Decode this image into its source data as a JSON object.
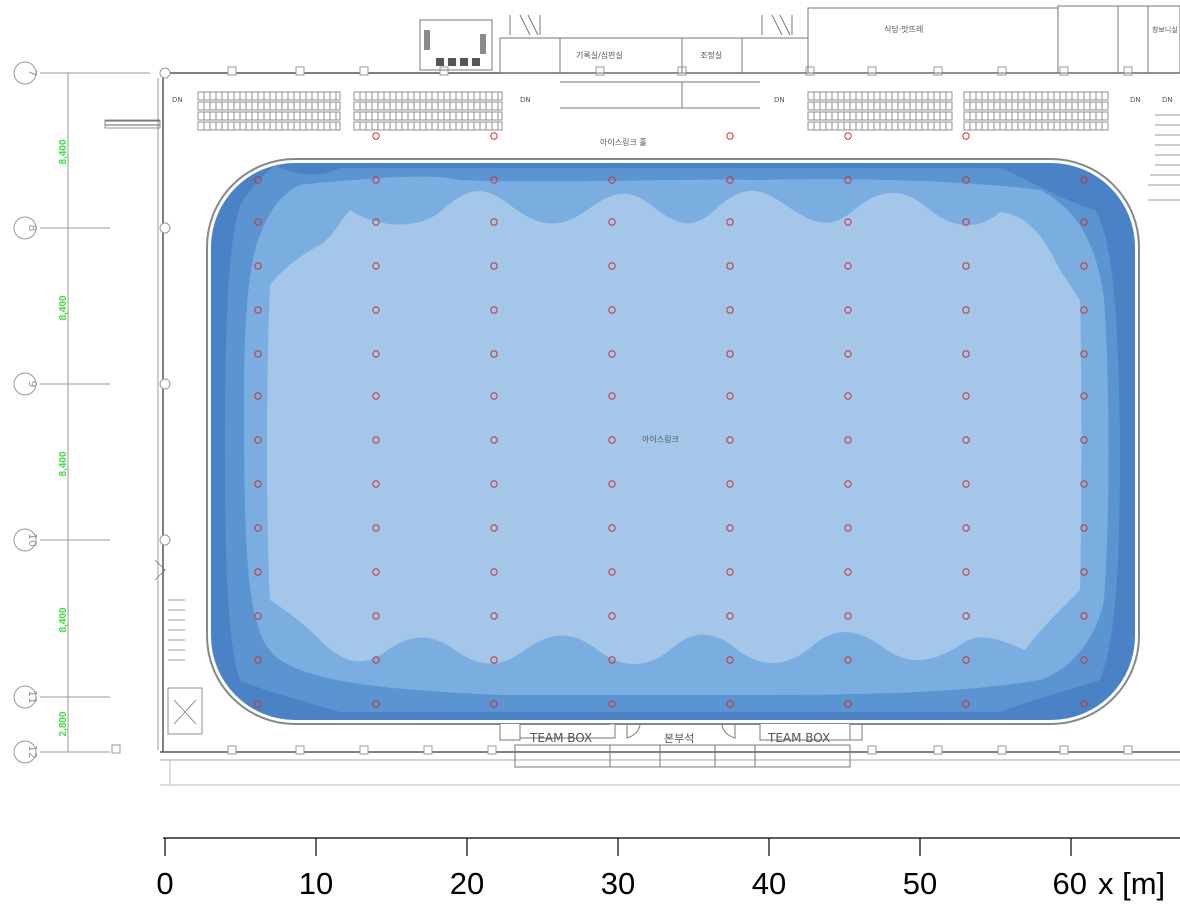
{
  "rooms": {
    "record_room": "기록실/심판실",
    "control_room": "조정실",
    "cafeteria": "식당·맛뜨레",
    "storage": "창보니실",
    "rink_hall": "아이스링크 홀",
    "rink": "아이스링크",
    "team_box_left": "TEAM BOX",
    "team_box_right": "TEAM BOX",
    "officials": "본부석"
  },
  "stairs": {
    "labels": [
      "DN",
      "DN",
      "DN",
      "DN",
      "DN"
    ]
  },
  "grid_lines": {
    "labels": [
      "7",
      "8",
      "9",
      "10",
      "11",
      "12"
    ],
    "spacings": [
      "8,400",
      "8,400",
      "8,400",
      "8,400",
      "2,800"
    ]
  },
  "x_axis": {
    "ticks": [
      "0",
      "10",
      "20",
      "30",
      "40",
      "50",
      "60"
    ],
    "label": "x [m]"
  },
  "colors": {
    "contour_darkest": "#4a83c5",
    "contour_dark": "#5b95d1",
    "contour_mid": "#7aaee0",
    "contour_light": "#a3c6e9",
    "luminaire": "#cc3333",
    "dimension_text": "#3ddc3d"
  },
  "luminaires": {
    "icon": "luminaire-symbol",
    "columns": 8,
    "rink_rows": 13,
    "hall_row": 6
  }
}
